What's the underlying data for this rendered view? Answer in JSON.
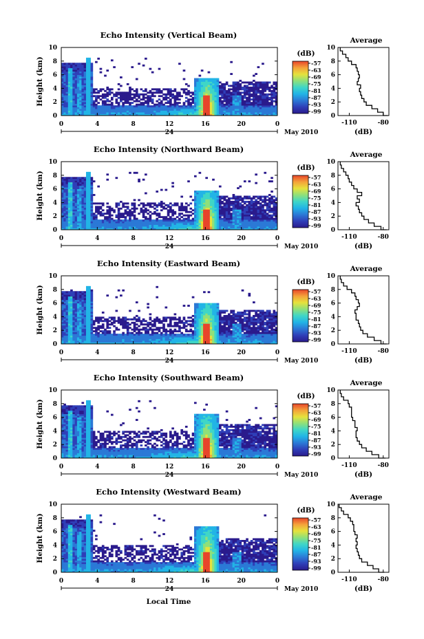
{
  "colors": {
    "colormap": [
      "#2a1a8c",
      "#2f3fb8",
      "#2b79d6",
      "#22b4e6",
      "#3fd6c7",
      "#8fe07a",
      "#e6e23c",
      "#f4a23a",
      "#e8452a"
    ],
    "background": "#ffffff",
    "profile_line": "#000000"
  },
  "figure": {
    "xlabel": "Local Time",
    "date_label": "May 2010",
    "date_day_marker": "24",
    "ylabel": "Height (km)",
    "colorbar_unit": "(dB)",
    "profile_title": "Average",
    "profile_xlabel": "(dB)"
  },
  "chart_data": [
    {
      "type": "heatmap",
      "title": "Echo Intensity (Vertical Beam)",
      "ylabel": "Height (km)",
      "xlabel": "",
      "xlim": [
        0,
        24
      ],
      "ylim": [
        0,
        10
      ],
      "x_ticks": [
        "0",
        "4",
        "8",
        "12",
        "16",
        "20",
        "0"
      ],
      "y_ticks": [
        "0",
        "2",
        "4",
        "6",
        "8",
        "10"
      ],
      "colorbar": {
        "label": "(dB)",
        "ticks": [
          "-57",
          "-63",
          "-69",
          "-75",
          "-81",
          "-87",
          "-93",
          "-99"
        ]
      },
      "profile": {
        "title": "Average",
        "xlabel": "(dB)",
        "x_ticks": [
          "-110",
          "-80"
        ],
        "xlim": [
          -120,
          -75
        ],
        "height_km": [
          0,
          0.5,
          1,
          1.5,
          2,
          2.5,
          3,
          3.5,
          4,
          4.5,
          5,
          5.5,
          6,
          6.5,
          7,
          7.5,
          8,
          8.5,
          9,
          9.5,
          10
        ],
        "values_db": [
          -76,
          -80,
          -85,
          -90,
          -95,
          -97,
          -99,
          -100,
          -101,
          -100,
          -103,
          -102,
          -101,
          -102,
          -103,
          -104,
          -108,
          -111,
          -113,
          -116,
          -118
        ]
      }
    },
    {
      "type": "heatmap",
      "title": "Echo Intensity (Northward Beam)",
      "ylabel": "Height (km)",
      "xlabel": "",
      "xlim": [
        0,
        24
      ],
      "ylim": [
        0,
        10
      ],
      "x_ticks": [
        "0",
        "4",
        "8",
        "12",
        "16",
        "20",
        "0"
      ],
      "y_ticks": [
        "0",
        "2",
        "4",
        "6",
        "8",
        "10"
      ],
      "colorbar": {
        "label": "(dB)",
        "ticks": [
          "-57",
          "-63",
          "-69",
          "-75",
          "-81",
          "-87",
          "-93",
          "-99"
        ]
      },
      "profile": {
        "title": "Average",
        "xlabel": "(dB)",
        "x_ticks": [
          "-110",
          "-80"
        ],
        "xlim": [
          -120,
          -75
        ],
        "height_km": [
          0,
          0.5,
          1,
          1.5,
          2,
          2.5,
          3,
          3.5,
          4,
          4.5,
          5,
          5.5,
          6,
          6.5,
          7,
          7.5,
          8,
          8.5,
          9,
          9.5,
          10
        ],
        "values_db": [
          -77,
          -82,
          -88,
          -93,
          -97,
          -99,
          -101,
          -102,
          -104,
          -101,
          -103,
          -99,
          -103,
          -106,
          -108,
          -110,
          -111,
          -113,
          -115,
          -117,
          -118
        ]
      }
    },
    {
      "type": "heatmap",
      "title": "Echo Intensity (Eastward Beam)",
      "ylabel": "Height (km)",
      "xlabel": "",
      "xlim": [
        0,
        24
      ],
      "ylim": [
        0,
        10
      ],
      "x_ticks": [
        "0",
        "4",
        "8",
        "12",
        "16",
        "20",
        "0"
      ],
      "y_ticks": [
        "0",
        "2",
        "4",
        "6",
        "8",
        "10"
      ],
      "colorbar": {
        "label": "(dB)",
        "ticks": [
          "-57",
          "-63",
          "-69",
          "-75",
          "-81",
          "-87",
          "-93",
          "-99"
        ]
      },
      "profile": {
        "title": "Average",
        "xlabel": "(dB)",
        "x_ticks": [
          "-110",
          "-80"
        ],
        "xlim": [
          -120,
          -75
        ],
        "height_km": [
          0,
          0.5,
          1,
          1.5,
          2,
          2.5,
          3,
          3.5,
          4,
          4.5,
          5,
          5.5,
          6,
          6.5,
          7,
          7.5,
          8,
          8.5,
          9,
          9.5,
          10
        ],
        "values_db": [
          -77,
          -82,
          -88,
          -94,
          -98,
          -100,
          -101,
          -102,
          -104,
          -104,
          -105,
          -103,
          -101,
          -102,
          -104,
          -105,
          -108,
          -112,
          -115,
          -117,
          -118
        ]
      }
    },
    {
      "type": "heatmap",
      "title": "Echo Intensity (Southward Beam)",
      "ylabel": "Height (km)",
      "xlabel": "",
      "xlim": [
        0,
        24
      ],
      "ylim": [
        0,
        10
      ],
      "x_ticks": [
        "0",
        "4",
        "8",
        "12",
        "16",
        "20",
        "0"
      ],
      "y_ticks": [
        "0",
        "2",
        "4",
        "6",
        "8",
        "10"
      ],
      "colorbar": {
        "label": "(dB)",
        "ticks": [
          "-57",
          "-63",
          "-69",
          "-75",
          "-81",
          "-87",
          "-93",
          "-99"
        ]
      },
      "profile": {
        "title": "Average",
        "xlabel": "(dB)",
        "x_ticks": [
          "-110",
          "-80"
        ],
        "xlim": [
          -120,
          -75
        ],
        "height_km": [
          0,
          0.5,
          1,
          1.5,
          2,
          2.5,
          3,
          3.5,
          4,
          4.5,
          5,
          5.5,
          6,
          6.5,
          7,
          7.5,
          8,
          8.5,
          9,
          9.5,
          10
        ],
        "values_db": [
          -78,
          -84,
          -90,
          -95,
          -99,
          -101,
          -103,
          -104,
          -104,
          -103,
          -105,
          -105,
          -107,
          -108,
          -108,
          -108,
          -110,
          -111,
          -115,
          -117,
          -118
        ]
      }
    },
    {
      "type": "heatmap",
      "title": "Echo Intensity (Westward Beam)",
      "ylabel": "Height (km)",
      "xlabel": "Local Time",
      "xlim": [
        0,
        24
      ],
      "ylim": [
        0,
        10
      ],
      "x_ticks": [
        "0",
        "4",
        "8",
        "12",
        "16",
        "20",
        "0"
      ],
      "y_ticks": [
        "0",
        "2",
        "4",
        "6",
        "8",
        "10"
      ],
      "colorbar": {
        "label": "(dB)",
        "ticks": [
          "-57",
          "-63",
          "-69",
          "-75",
          "-81",
          "-87",
          "-93",
          "-99"
        ]
      },
      "profile": {
        "title": "Average",
        "xlabel": "(dB)",
        "x_ticks": [
          "-110",
          "-80"
        ],
        "xlim": [
          -120,
          -75
        ],
        "height_km": [
          0,
          0.5,
          1,
          1.5,
          2,
          2.5,
          3,
          3.5,
          4,
          4.5,
          5,
          5.5,
          6,
          6.5,
          7,
          7.5,
          8,
          8.5,
          9,
          9.5,
          10
        ],
        "values_db": [
          -79,
          -84,
          -89,
          -94,
          -99,
          -101,
          -102,
          -103,
          -104,
          -103,
          -104,
          -103,
          -105,
          -106,
          -106,
          -107,
          -109,
          -111,
          -115,
          -117,
          -119
        ]
      }
    }
  ]
}
